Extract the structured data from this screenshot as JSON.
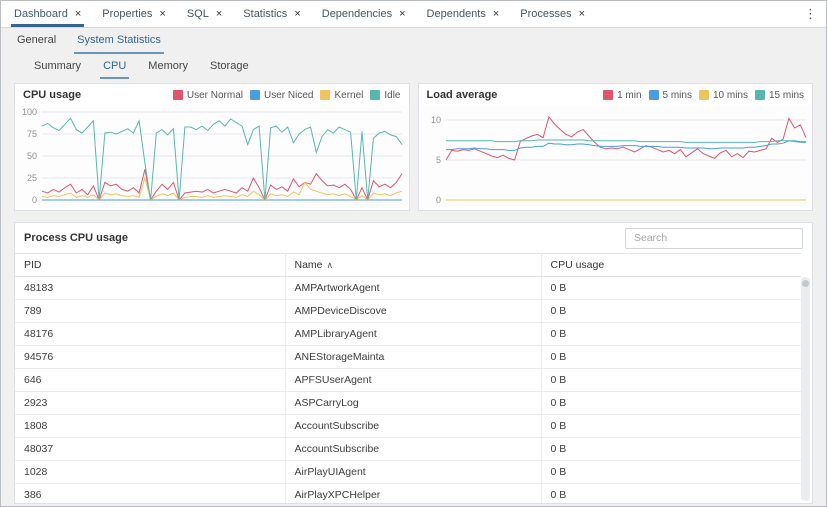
{
  "colors": {
    "primary": "#326690",
    "red": "#e0546c",
    "blue": "#4c9ce0",
    "yellow": "#f0c35e",
    "teal": "#59b6ae"
  },
  "icons": {
    "close": "×",
    "kebab": "⋮",
    "sort_asc": "∧"
  },
  "main_tabs": [
    {
      "label": "Dashboard",
      "active": true
    },
    {
      "label": "Properties",
      "active": false
    },
    {
      "label": "SQL",
      "active": false
    },
    {
      "label": "Statistics",
      "active": false
    },
    {
      "label": "Dependencies",
      "active": false
    },
    {
      "label": "Dependents",
      "active": false
    },
    {
      "label": "Processes",
      "active": false
    }
  ],
  "sub_tabs": [
    {
      "label": "General",
      "active": false
    },
    {
      "label": "System Statistics",
      "active": true
    }
  ],
  "stat_tabs": [
    {
      "label": "Summary",
      "active": false
    },
    {
      "label": "CPU",
      "active": true
    },
    {
      "label": "Memory",
      "active": false
    },
    {
      "label": "Storage",
      "active": false
    }
  ],
  "chart_data": [
    {
      "type": "line",
      "title": "CPU usage",
      "ylim": [
        0,
        100
      ],
      "yticks": [
        0,
        25,
        50,
        75,
        100
      ],
      "grid": true,
      "legend_position": "top-right",
      "series": [
        {
          "name": "User Normal",
          "color": "#e0546c",
          "values": [
            10,
            8,
            12,
            9,
            14,
            18,
            8,
            12,
            6,
            16,
            0,
            20,
            16,
            18,
            12,
            10,
            14,
            8,
            35,
            0,
            10,
            18,
            12,
            20,
            0,
            8,
            9,
            10,
            9,
            12,
            8,
            10,
            12,
            10,
            8,
            14,
            10,
            25,
            14,
            0,
            17,
            12,
            15,
            10,
            24,
            15,
            20,
            18,
            30,
            22,
            16,
            17,
            14,
            18,
            12,
            0,
            14,
            0,
            22,
            15,
            18,
            14,
            20,
            30
          ]
        },
        {
          "name": "User Niced",
          "color": "#4c9ce0",
          "values": [
            0,
            0,
            0,
            0,
            0,
            0,
            0,
            0,
            0,
            0,
            0,
            0,
            0,
            0,
            0,
            0,
            0,
            0,
            0,
            0,
            0,
            0,
            0,
            0,
            0,
            0,
            0,
            0,
            0,
            0,
            0,
            0,
            0,
            0,
            0,
            0,
            0,
            0,
            0,
            0,
            0,
            0,
            0,
            0,
            0,
            0,
            0,
            0,
            0,
            0,
            0,
            0,
            0,
            0,
            0,
            0,
            0,
            0,
            0,
            0,
            0,
            0,
            0,
            0
          ]
        },
        {
          "name": "Kernel",
          "color": "#f0c35e",
          "values": [
            4,
            3,
            5,
            4,
            6,
            8,
            3,
            5,
            3,
            6,
            0,
            8,
            6,
            7,
            5,
            4,
            5,
            3,
            25,
            0,
            4,
            7,
            5,
            8,
            0,
            3,
            4,
            4,
            3,
            5,
            3,
            4,
            5,
            4,
            3,
            6,
            4,
            10,
            6,
            0,
            7,
            5,
            6,
            4,
            9,
            6,
            20,
            12,
            10,
            8,
            6,
            7,
            5,
            7,
            4,
            0,
            5,
            0,
            8,
            6,
            7,
            5,
            8,
            10
          ]
        },
        {
          "name": "Idle",
          "color": "#59b6ae",
          "values": [
            84,
            87,
            82,
            79,
            86,
            93,
            80,
            76,
            83,
            90,
            0,
            76,
            77,
            75,
            78,
            81,
            76,
            90,
            42,
            0,
            76,
            80,
            74,
            81,
            0,
            83,
            83,
            80,
            84,
            79,
            86,
            90,
            84,
            92,
            88,
            84,
            63,
            80,
            84,
            0,
            82,
            84,
            77,
            83,
            65,
            75,
            80,
            83,
            54,
            72,
            80,
            76,
            83,
            80,
            77,
            0,
            78,
            0,
            70,
            76,
            78,
            74,
            72,
            63
          ]
        }
      ]
    },
    {
      "type": "line",
      "title": "Load average",
      "ylim": [
        0,
        11
      ],
      "yticks": [
        0,
        5,
        10
      ],
      "grid": true,
      "legend_position": "top-right",
      "series": [
        {
          "name": "1 min",
          "color": "#e0546c",
          "values": [
            5.0,
            6.2,
            6.1,
            6.3,
            6.2,
            6.4,
            6.1,
            5.8,
            5.5,
            5.3,
            5.6,
            5.2,
            5.0,
            7.3,
            7.7,
            8.0,
            8.2,
            7.8,
            10.4,
            9.5,
            8.8,
            8.2,
            7.9,
            8.5,
            8.8,
            8.0,
            7.2,
            6.6,
            6.4,
            6.5,
            6.4,
            6.6,
            6.3,
            6.0,
            6.4,
            6.8,
            6.6,
            6.3,
            6.0,
            6.2,
            5.8,
            6.3,
            5.4,
            5.9,
            6.4,
            5.8,
            5.5,
            5.2,
            5.9,
            6.2,
            5.4,
            5.8,
            5.3,
            6.1,
            6.0,
            6.2,
            6.4,
            7.7,
            7.2,
            7.6,
            10.2,
            9.0,
            9.4,
            7.8
          ]
        },
        {
          "name": "5 mins",
          "color": "#4c9ce0",
          "values": [
            6.3,
            6.3,
            6.4,
            6.4,
            6.4,
            6.5,
            6.4,
            6.4,
            6.3,
            6.3,
            6.3,
            6.2,
            6.2,
            6.5,
            6.6,
            6.6,
            6.7,
            6.7,
            7.1,
            7.0,
            7.0,
            6.9,
            6.9,
            7.0,
            7.0,
            6.9,
            6.8,
            6.7,
            6.7,
            6.7,
            6.7,
            6.8,
            6.8,
            6.8,
            6.7,
            6.7,
            6.7,
            6.7,
            6.6,
            6.6,
            6.6,
            6.6,
            6.5,
            6.5,
            6.5,
            6.5,
            6.4,
            6.4,
            6.5,
            6.5,
            6.5,
            6.5,
            6.5,
            6.6,
            6.6,
            6.7,
            6.8,
            7.0,
            7.0,
            7.1,
            7.4,
            7.4,
            7.3,
            7.3
          ]
        },
        {
          "name": "10 mins",
          "color": "#f0c35e",
          "values": [
            0,
            0,
            0,
            0,
            0,
            0,
            0,
            0,
            0,
            0,
            0,
            0,
            0,
            0,
            0,
            0,
            0,
            0,
            0,
            0,
            0,
            0,
            0,
            0,
            0,
            0,
            0,
            0,
            0,
            0,
            0,
            0,
            0,
            0,
            0,
            0,
            0,
            0,
            0,
            0,
            0,
            0,
            0,
            0,
            0,
            0,
            0,
            0,
            0,
            0,
            0,
            0,
            0,
            0,
            0,
            0,
            0,
            0,
            0,
            0,
            0,
            0,
            0,
            0
          ]
        },
        {
          "name": "15 mins",
          "color": "#59b6ae",
          "values": [
            7.4,
            7.4,
            7.4,
            7.4,
            7.4,
            7.4,
            7.4,
            7.4,
            7.4,
            7.3,
            7.3,
            7.3,
            7.3,
            7.4,
            7.4,
            7.4,
            7.5,
            7.5,
            7.5,
            7.5,
            7.5,
            7.5,
            7.5,
            7.5,
            7.5,
            7.4,
            7.4,
            7.4,
            7.4,
            7.4,
            7.4,
            7.4,
            7.4,
            7.4,
            7.3,
            7.3,
            7.3,
            7.3,
            7.3,
            7.3,
            7.3,
            7.3,
            7.2,
            7.2,
            7.2,
            7.2,
            7.2,
            7.2,
            7.2,
            7.2,
            7.2,
            7.2,
            7.2,
            7.2,
            7.2,
            7.3,
            7.3,
            7.3,
            7.4,
            7.4,
            7.4,
            7.3,
            7.2,
            7.2
          ]
        }
      ]
    }
  ],
  "process_table": {
    "title": "Process CPU usage",
    "search_placeholder": "Search",
    "columns": [
      {
        "label": "PID",
        "sorted": false
      },
      {
        "label": "Name",
        "sorted": true
      },
      {
        "label": "CPU usage",
        "sorted": false
      }
    ],
    "rows": [
      {
        "pid": "48183",
        "name": "AMPArtworkAgent",
        "cpu": "0 B"
      },
      {
        "pid": "789",
        "name": "AMPDeviceDiscove",
        "cpu": "0 B"
      },
      {
        "pid": "48176",
        "name": "AMPLibraryAgent",
        "cpu": "0 B"
      },
      {
        "pid": "94576",
        "name": "ANEStorageMainta",
        "cpu": "0 B"
      },
      {
        "pid": "646",
        "name": "APFSUserAgent",
        "cpu": "0 B"
      },
      {
        "pid": "2923",
        "name": "ASPCarryLog",
        "cpu": "0 B"
      },
      {
        "pid": "1808",
        "name": "AccountSubscribe",
        "cpu": "0 B"
      },
      {
        "pid": "48037",
        "name": "AccountSubscribe",
        "cpu": "0 B"
      },
      {
        "pid": "1028",
        "name": "AirPlayUIAgent",
        "cpu": "0 B"
      },
      {
        "pid": "386",
        "name": "AirPlayXPCHelper",
        "cpu": "0 B"
      }
    ]
  }
}
